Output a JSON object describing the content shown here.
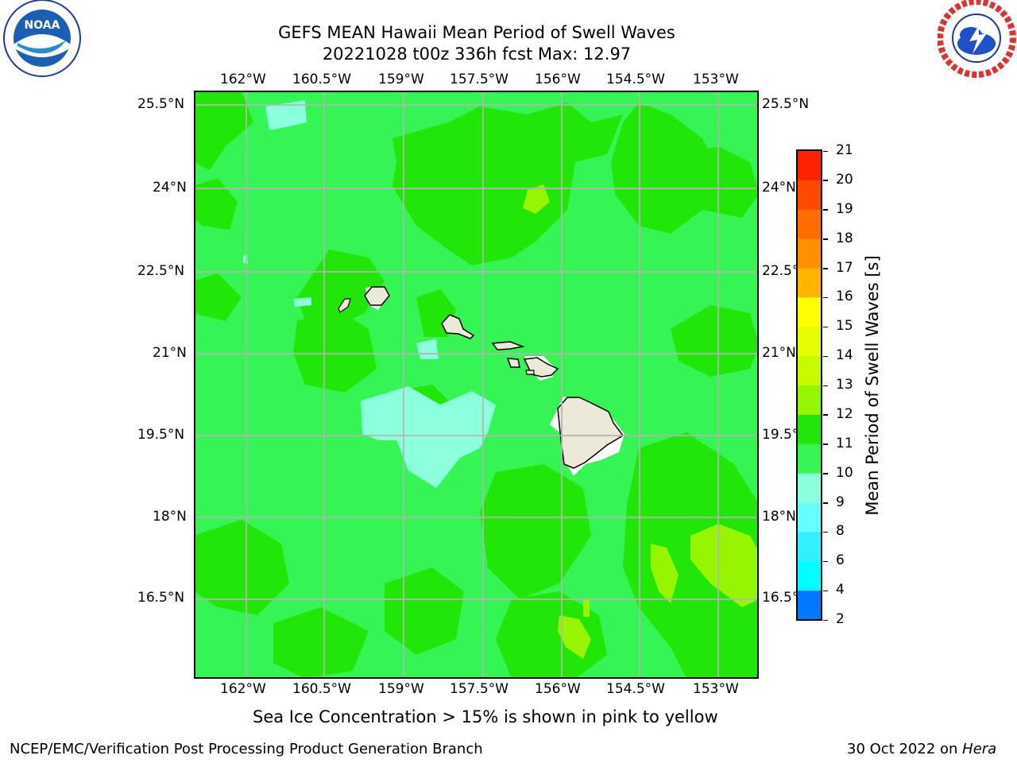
{
  "header": {
    "title_line1": "GEFS MEAN Hawaii Mean Period of Swell Waves",
    "title_line2": "20221028 t00z 336h fcst   Max: 12.97"
  },
  "logos": {
    "noara_text": "NOAA",
    "noaa_ring_text": "NATIONAL OCEANIC AND ATMOSPHERIC ADMINISTRATION · U.S. DEPARTMENT OF COMMERCE",
    "nws_ring_text": "NATIONAL WEATHER SERVICE"
  },
  "map": {
    "lon_labels": [
      "162°W",
      "160.5°W",
      "159°W",
      "157.5°W",
      "156°W",
      "154.5°W",
      "153°W"
    ],
    "lat_labels": [
      "25.5°N",
      "24°N",
      "22.5°N",
      "21°N",
      "19.5°N",
      "18°N",
      "16.5°N"
    ],
    "lon_values": [
      -162,
      -160.5,
      -159,
      -157.5,
      -156,
      -154.5,
      -153
    ],
    "lat_values": [
      25.5,
      24,
      22.5,
      21,
      19.5,
      18,
      16.5
    ],
    "background_field": "#34f554",
    "gridline_color": "#b4b4b4"
  },
  "colorbar": {
    "label": "Mean Period of Swell Waves [s]",
    "ticks": [
      "21",
      "20",
      "19",
      "18",
      "17",
      "16",
      "15",
      "14",
      "13",
      "12",
      "11",
      "10",
      "9",
      "8",
      "6",
      "4",
      "2"
    ],
    "colors": [
      "#ff0000",
      "#ff2400",
      "#ff4800",
      "#ff6c00",
      "#ff9000",
      "#ffb400",
      "#ffff00",
      "#e4ff00",
      "#c8fa00",
      "#96f500",
      "#22e608",
      "#34f554",
      "#8cffdc",
      "#64ffff",
      "#32f0ff",
      "#00ffff",
      "#0078ff",
      "#0000ff"
    ]
  },
  "notes": {
    "sea_ice": "Sea Ice Concentration > 15% is shown in pink to yellow",
    "credit": "NCEP/EMC/Verification Post Processing Product Generation Branch",
    "date_prefix": "30 Oct 2022 on ",
    "date_host": "Hera"
  }
}
